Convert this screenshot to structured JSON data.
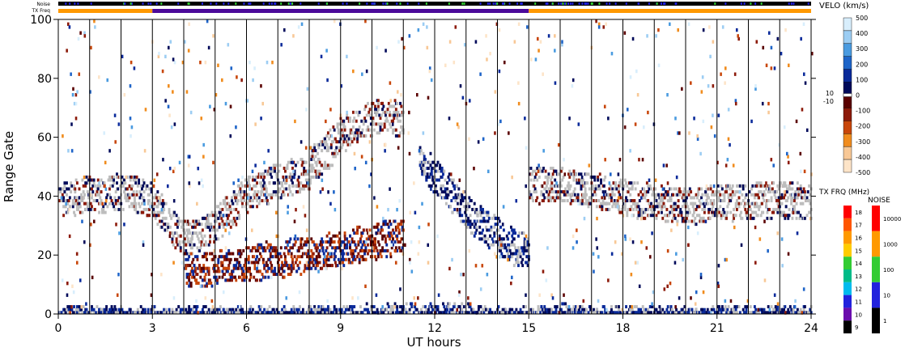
{
  "chart_data": {
    "type": "heatmap",
    "xlabel": "UT hours",
    "ylabel": "Range Gate",
    "xlim": [
      0,
      24
    ],
    "ylim": [
      0,
      100
    ],
    "xticks": [
      "0",
      "3",
      "6",
      "9",
      "12",
      "15",
      "18",
      "21",
      "24"
    ],
    "yticks": [
      "0",
      "20",
      "40",
      "60",
      "80",
      "100"
    ],
    "x_minor_lines_hours": [
      1,
      2,
      3,
      4,
      5,
      6,
      7,
      8,
      9,
      10,
      11,
      12,
      13,
      14,
      15,
      16,
      17,
      18,
      19,
      20,
      21,
      22,
      23
    ],
    "top_strips": {
      "noise_label": "Noise",
      "txfreq_label": "TX Freq",
      "txfreq_segments": [
        {
          "start": 0,
          "end": 3,
          "freq_class": "orange"
        },
        {
          "start": 3,
          "end": 15,
          "freq_class": "purple"
        },
        {
          "start": 15,
          "end": 24,
          "freq_class": "orange"
        }
      ]
    },
    "velocity_scale": {
      "title": "VELO (km/s)",
      "ticks": [
        "500",
        "400",
        "300",
        "200",
        "100",
        "0",
        "-100",
        "-200",
        "-300",
        "-400",
        "-500"
      ],
      "ground_scatter_labels": [
        "10",
        "-10"
      ],
      "colors": [
        "#d8eefc",
        "#9ccdf3",
        "#4a9be0",
        "#1e64c8",
        "#0a2a9a",
        "#000a5a",
        "#5a0000",
        "#8c1a0a",
        "#c8460a",
        "#f08c1e",
        "#f8c896",
        "#fde4c8"
      ]
    },
    "txfreq_scale": {
      "title": "TX FRQ (MHz)",
      "ticks": [
        "18",
        "17",
        "16",
        "15",
        "14",
        "13",
        "12",
        "11",
        "10",
        "9"
      ],
      "colors": [
        "#ff0000",
        "#ff5500",
        "#ff9900",
        "#ffcc00",
        "#33cc33",
        "#00bb88",
        "#00bbee",
        "#2222dd",
        "#6a0dad",
        "#000000"
      ]
    },
    "noise_scale": {
      "title": "NOISE",
      "ticks": [
        "10000",
        "1000",
        "100",
        "10",
        "1"
      ],
      "colors": [
        "#ff0000",
        "#ff9900",
        "#33cc33",
        "#2222dd",
        "#000000"
      ]
    },
    "series": [
      {
        "x": [
          0,
          0.5,
          1,
          1.5,
          2,
          2.5,
          3,
          3.5,
          4,
          4.5,
          5,
          5.5,
          6,
          6.5,
          7,
          7.5,
          8
        ],
        "y": [
          38,
          39,
          40,
          40,
          41,
          40,
          38,
          30,
          25,
          27,
          30,
          35,
          40,
          42,
          45,
          46,
          47
        ]
      },
      {
        "x": [
          8,
          8.5,
          9,
          9.5,
          10,
          10.5,
          11
        ],
        "y": [
          50,
          54,
          60,
          64,
          66,
          68,
          64
        ]
      },
      {
        "x": [
          11.5,
          12,
          12.5,
          13,
          13.5,
          14,
          14.5,
          15
        ],
        "y": [
          52,
          46,
          40,
          34,
          30,
          26,
          22,
          20
        ]
      },
      {
        "x": [
          15,
          16,
          17,
          18,
          19,
          20,
          21,
          22,
          23,
          24
        ],
        "y": [
          44,
          43,
          42,
          39,
          37,
          36,
          37,
          38,
          38,
          38
        ]
      },
      {
        "x": [
          4,
          5,
          6,
          7,
          8,
          9,
          10,
          11
        ],
        "y": [
          14,
          15,
          17,
          18,
          20,
          22,
          24,
          26
        ]
      },
      {
        "x": [
          0,
          1,
          2,
          3,
          4,
          5,
          6,
          7,
          8,
          9,
          10,
          11,
          12,
          13,
          14,
          15,
          16,
          17,
          18,
          19,
          20,
          21,
          22,
          23,
          24
        ],
        "y": [
          0,
          0,
          0,
          0,
          0,
          0,
          0,
          0,
          0,
          0,
          1,
          1,
          1,
          1,
          0,
          0,
          1,
          0,
          0,
          0,
          0,
          0,
          0,
          0,
          0
        ]
      }
    ]
  }
}
